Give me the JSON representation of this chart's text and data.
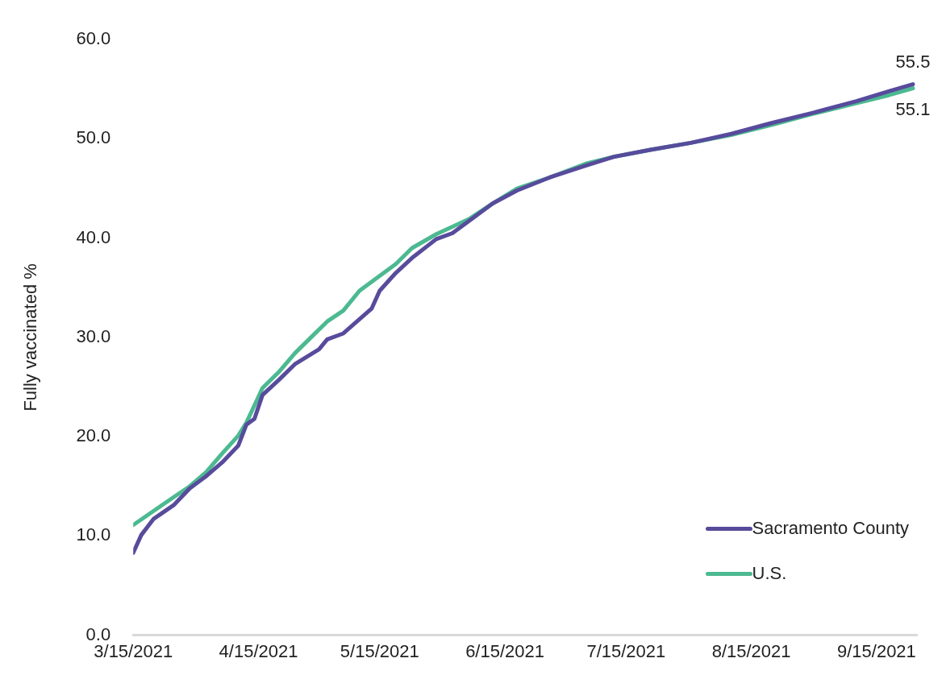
{
  "chart_data": {
    "type": "line",
    "ylabel": "Fully vaccinated %",
    "xlim": [
      "2021-03-15",
      "2021-09-25"
    ],
    "xticks": [
      {
        "value": "2021-03-15",
        "label": "3/15/2021"
      },
      {
        "value": "2021-04-15",
        "label": "4/15/2021"
      },
      {
        "value": "2021-05-15",
        "label": "5/15/2021"
      },
      {
        "value": "2021-06-15",
        "label": "6/15/2021"
      },
      {
        "value": "2021-07-15",
        "label": "7/15/2021"
      },
      {
        "value": "2021-08-15",
        "label": "8/15/2021"
      },
      {
        "value": "2021-09-15",
        "label": "9/15/2021"
      }
    ],
    "ylim": [
      0,
      60
    ],
    "yticks": [
      {
        "value": 0,
        "label": "0.0"
      },
      {
        "value": 10,
        "label": "10.0"
      },
      {
        "value": 20,
        "label": "20.0"
      },
      {
        "value": 30,
        "label": "30.0"
      },
      {
        "value": 40,
        "label": "40.0"
      },
      {
        "value": 50,
        "label": "50.0"
      },
      {
        "value": 60,
        "label": "60.0"
      }
    ],
    "grid": false,
    "legend": "bottom right",
    "marker": "none",
    "line_style": "solid",
    "series": [
      {
        "name": "Sacramento County",
        "color": "#574b9c",
        "x": [
          "2021-03-15",
          "2021-03-17",
          "2021-03-20",
          "2021-03-25",
          "2021-03-29",
          "2021-04-02",
          "2021-04-06",
          "2021-04-10",
          "2021-04-12",
          "2021-04-14",
          "2021-04-16",
          "2021-04-20",
          "2021-04-24",
          "2021-04-30",
          "2021-05-02",
          "2021-05-06",
          "2021-05-13",
          "2021-05-15",
          "2021-05-19",
          "2021-05-23",
          "2021-05-29",
          "2021-06-02",
          "2021-06-06",
          "2021-06-12",
          "2021-06-18",
          "2021-06-26",
          "2021-07-05",
          "2021-07-12",
          "2021-07-21",
          "2021-07-31",
          "2021-08-10",
          "2021-08-20",
          "2021-08-30",
          "2021-09-10",
          "2021-09-18",
          "2021-09-24"
        ],
        "values": [
          8.3,
          10.1,
          11.7,
          13.1,
          14.8,
          16.0,
          17.4,
          19.1,
          21.2,
          21.8,
          24.2,
          25.7,
          27.3,
          28.8,
          29.8,
          30.4,
          32.9,
          34.7,
          36.5,
          38.0,
          39.9,
          40.5,
          41.7,
          43.5,
          44.8,
          46.1,
          47.3,
          48.2,
          48.9,
          49.6,
          50.5,
          51.6,
          52.6,
          53.8,
          54.8,
          55.5
        ]
      },
      {
        "name": "U.S.",
        "color": "#4cb991",
        "x": [
          "2021-03-15",
          "2021-03-20",
          "2021-03-25",
          "2021-03-29",
          "2021-04-02",
          "2021-04-06",
          "2021-04-10",
          "2021-04-12",
          "2021-04-16",
          "2021-04-20",
          "2021-04-24",
          "2021-04-28",
          "2021-05-02",
          "2021-05-06",
          "2021-05-10",
          "2021-05-15",
          "2021-05-19",
          "2021-05-23",
          "2021-05-29",
          "2021-06-06",
          "2021-06-12",
          "2021-06-18",
          "2021-06-26",
          "2021-07-05",
          "2021-07-12",
          "2021-07-21",
          "2021-07-31",
          "2021-08-10",
          "2021-08-20",
          "2021-08-30",
          "2021-09-10",
          "2021-09-18",
          "2021-09-24"
        ],
        "values": [
          11.1,
          12.5,
          13.9,
          15.0,
          16.4,
          18.3,
          20.1,
          21.4,
          24.9,
          26.5,
          28.4,
          30.0,
          31.6,
          32.7,
          34.7,
          36.2,
          37.4,
          39.0,
          40.4,
          41.9,
          43.5,
          45.0,
          46.1,
          47.5,
          48.2,
          48.9,
          49.6,
          50.4,
          51.4,
          52.5,
          53.6,
          54.4,
          55.1
        ]
      }
    ],
    "annotations": [
      {
        "text": "55.5",
        "x": "2021-09-24",
        "y": 55.5
      },
      {
        "text": "55.1",
        "x": "2021-09-24",
        "y": 55.1
      }
    ]
  }
}
